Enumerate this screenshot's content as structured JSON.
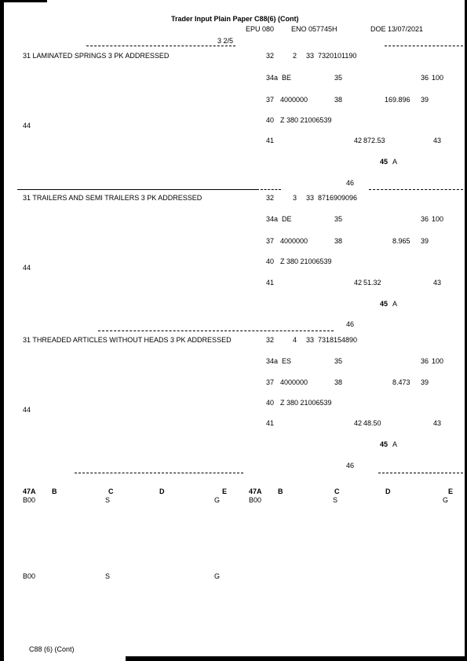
{
  "header": {
    "title": "Trader Input Plain Paper C88(6) (Cont)",
    "epu": "EPU 080",
    "eno": "ENO 057745H",
    "doe": "DOE 13/07/2021",
    "page_ref": "3  2/5"
  },
  "items": [
    {
      "box31": "31 LAMINATED SPRINGS 3 PK ADDRESSED",
      "b32": "32",
      "b32_val": "2",
      "b33": "33",
      "b33_val": "7320101190",
      "b34a": "34a",
      "b34a_val": "BE",
      "b35": "35",
      "b36": "36",
      "b36_val": "100",
      "b37": "37",
      "b37_val": "4000000",
      "b38": "38",
      "b38_val": "169.896",
      "b39": "39",
      "b40": "40",
      "b40_val": "Z 380 21006539",
      "b44": "44",
      "b41": "41",
      "b42": "42",
      "b42_val": "872.53",
      "b43": "43",
      "b45": "45",
      "b45_val": "A",
      "b46": "46"
    },
    {
      "box31": "31 TRAILERS AND SEMI TRAILERS 3 PK ADDRESSED",
      "b32": "32",
      "b32_val": "3",
      "b33": "33",
      "b33_val": "8716909096",
      "b34a": "34a",
      "b34a_val": "DE",
      "b35": "35",
      "b36": "36",
      "b36_val": "100",
      "b37": "37",
      "b37_val": "4000000",
      "b38": "38",
      "b38_val": "8.965",
      "b39": "39",
      "b40": "40",
      "b40_val": "Z 380 21006539",
      "b44": "44",
      "b41": "41",
      "b42": "42",
      "b42_val": "51.32",
      "b43": "43",
      "b45": "45",
      "b45_val": "A",
      "b46": "46"
    },
    {
      "box31": "31 THREADED ARTICLES WITHOUT HEADS 3 PK ADDRESSED",
      "b32": "32",
      "b32_val": "4",
      "b33": "33",
      "b33_val": "7318154890",
      "b34a": "34a",
      "b34a_val": "ES",
      "b35": "35",
      "b36": "36",
      "b36_val": "100",
      "b37": "37",
      "b37_val": "4000000",
      "b38": "38",
      "b38_val": "8.473",
      "b39": "39",
      "b40": "40",
      "b40_val": "Z 380 21006539",
      "b44": "44",
      "b41": "41",
      "b42": "42",
      "b42_val": "48.50",
      "b43": "43",
      "b45": "45",
      "b45_val": "A",
      "b46": "46"
    }
  ],
  "box47": {
    "left": {
      "col_47a": "47A",
      "col_b": "B",
      "col_c": "C",
      "col_d": "D",
      "col_e": "E",
      "rows": [
        {
          "a": "B00",
          "c": "S",
          "e": "G"
        },
        {
          "a": "B00",
          "c": "S",
          "e": "G"
        }
      ]
    },
    "right": {
      "col_47a": "47A",
      "col_b": "B",
      "col_c": "C",
      "col_d": "D",
      "col_e": "E",
      "rows": [
        {
          "a": "B00",
          "c": "S",
          "e": "G"
        }
      ]
    }
  },
  "footer": "C88 (6)  (Cont)"
}
